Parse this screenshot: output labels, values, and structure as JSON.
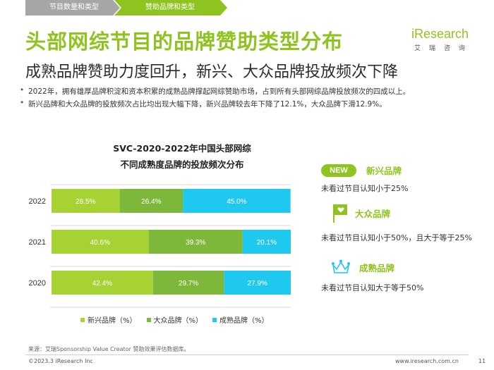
{
  "tabs": [
    "节目数量和类型",
    "赞助品牌和类型"
  ],
  "title": "头部网综节目的品牌赞助类型分布",
  "subtitle": "成熟品牌赞助力度回升，新兴、大众品牌投放频次下降",
  "logo": {
    "brand": "iResearch",
    "chars": [
      "艾",
      "瑞",
      "咨",
      "询"
    ]
  },
  "bullets": [
    "2022年，拥有雄厚品牌积淀和资本积累的成熟品牌撑起网综赞助市场，占到所有头部网综品牌投放频次的四成以上。",
    "新兴品牌和大众品牌的投放频次占比均出现大幅下降，新兴品牌较去年下降了12.1%，大众品牌下滑12.9%。"
  ],
  "chart_data": {
    "type": "bar",
    "orientation": "horizontal",
    "stacked": true,
    "title": "SVC-2020-2022年中国头部网综",
    "subtitle": "不同成熟度品牌的投放频次分布",
    "categories": [
      "2022",
      "2021",
      "2020"
    ],
    "series": [
      {
        "name": "新兴品牌（%）",
        "color": "#a6d233",
        "values": [
          28.5,
          40.6,
          42.4
        ],
        "labels": [
          "28.5%",
          "40.6%",
          "42.4%"
        ]
      },
      {
        "name": "大众品牌（%）",
        "color": "#7db83a",
        "values": [
          26.4,
          39.3,
          29.7
        ],
        "labels": [
          "26.4%",
          "39.3%",
          "29.7%"
        ]
      },
      {
        "name": "成熟品牌（%）",
        "color": "#1fc8ef",
        "values": [
          45.0,
          20.1,
          27.9
        ],
        "labels": [
          "45.0%",
          "20.1%",
          "27.9%"
        ]
      }
    ],
    "xlim": [
      0,
      100
    ]
  },
  "panel": {
    "new": {
      "badge": "NEW",
      "label": "新兴品牌",
      "desc": "未看过节目认知小于25%"
    },
    "mass": {
      "label": "大众品牌",
      "desc": "未看过节目认知小于50%，且大于等于25%"
    },
    "mature": {
      "label": "成熟品牌",
      "desc": "未看过节目认知大于等于50%"
    }
  },
  "source": "来源：艾瑞Sponsorship Value Creator 赞助效果评估数据库。",
  "footer": {
    "copyright": "©2023.3 iResearch Inc",
    "url": "www.iresearch.com.cn",
    "page": "11"
  },
  "colors": {
    "accent": "#8fc31f",
    "new": "#a6d233",
    "mass": "#7db83a",
    "mature": "#1fc8ef"
  }
}
